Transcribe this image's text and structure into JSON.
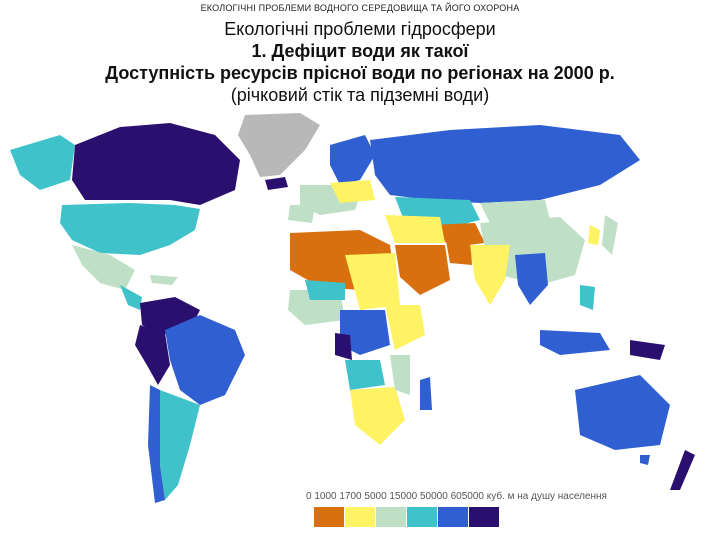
{
  "header": {
    "caption": "ЕКОЛОГІЧНІ ПРОБЛЕМИ ВОДНОГО СЕРЕДОВИЩА ТА ЙОГО ОХОРОНА",
    "title_line1": "Екологічні проблеми гідросфери",
    "title_line2": "1. Дефіцит води як такої",
    "title_line3": "Доступність ресурсів прісної води по регіонах на 2000 р.",
    "title_line4": "(річковий стік та підземні води)"
  },
  "legend": {
    "labels_text": "0   1000   1700   5000 15000 50000 605000 куб. м на душу населення",
    "classes": [
      {
        "range": "0–1000",
        "color": "#d9700f"
      },
      {
        "range": "1000–1700",
        "color": "#fff263"
      },
      {
        "range": "1700–5000",
        "color": "#bfe0c6"
      },
      {
        "range": "5000–15000",
        "color": "#3fc2c9"
      },
      {
        "range": "15000–50000",
        "color": "#2f5fd0"
      },
      {
        "range": "50000–605000",
        "color": "#2b0f6e"
      }
    ]
  },
  "colors": {
    "orange": "#d9700f",
    "yellow": "#fff263",
    "pale": "#bfe0c6",
    "cyan": "#3fc2c9",
    "blue": "#2f5fd0",
    "navy": "#2b0f6e",
    "nodata": "#b8b8b8"
  }
}
